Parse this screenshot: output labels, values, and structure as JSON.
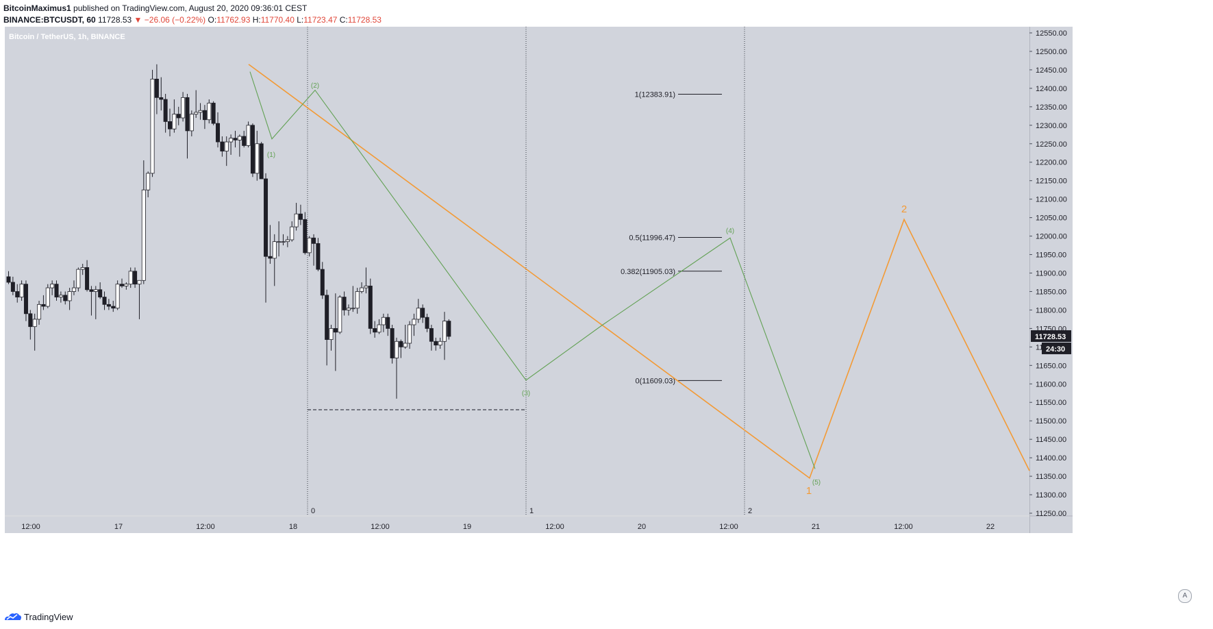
{
  "header": {
    "author": "BitcoinMaximus1",
    "published_text": "published on TradingView.com, August 20, 2020 09:36:01 CEST",
    "symbol": "BINANCE:BTCUSDT, 60",
    "last_price": "11728.53",
    "change": "−26.06 (−0.22%)",
    "open_label": "O:",
    "open_value": "11762.93",
    "high_label": "H:",
    "high_value": "11770.40",
    "low_label": "L:",
    "low_value": "11723.47",
    "close_label": "C:",
    "close_value": "11728.53"
  },
  "chart_data": {
    "type": "candlestick",
    "title": "Bitcoin / TetherUS, 1h, BINANCE",
    "ylim": [
      11240,
      12590
    ],
    "y_ticks": [
      12550,
      12500,
      12450,
      12400,
      12350,
      12300,
      12250,
      12200,
      12150,
      12100,
      12050,
      12000,
      11950,
      11900,
      11850,
      11800,
      11750,
      11700,
      11650,
      11600,
      11550,
      11500,
      11450,
      11400,
      11350,
      11300,
      11250
    ],
    "x_ticks": [
      "12:00",
      "17",
      "12:00",
      "18",
      "12:00",
      "19",
      "12:00",
      "20",
      "12:00",
      "21",
      "12:00",
      "22"
    ],
    "price_label": "11728.53",
    "countdown_label": "24:30",
    "candles": [
      [
        11890,
        11905,
        11870,
        11875
      ],
      [
        11875,
        11890,
        11840,
        11850
      ],
      [
        11850,
        11870,
        11820,
        11835
      ],
      [
        11835,
        11880,
        11825,
        11870
      ],
      [
        11870,
        11880,
        11770,
        11790
      ],
      [
        11790,
        11800,
        11720,
        11755
      ],
      [
        11755,
        11790,
        11690,
        11775
      ],
      [
        11775,
        11825,
        11760,
        11815
      ],
      [
        11815,
        11840,
        11800,
        11810
      ],
      [
        11810,
        11870,
        11805,
        11860
      ],
      [
        11860,
        11880,
        11840,
        11870
      ],
      [
        11870,
        11880,
        11825,
        11835
      ],
      [
        11835,
        11850,
        11820,
        11840
      ],
      [
        11840,
        11850,
        11815,
        11825
      ],
      [
        11825,
        11860,
        11800,
        11850
      ],
      [
        11850,
        11880,
        11840,
        11860
      ],
      [
        11860,
        11915,
        11850,
        11910
      ],
      [
        11910,
        11925,
        11895,
        11915
      ],
      [
        11915,
        11935,
        11850,
        11855
      ],
      [
        11855,
        11865,
        11785,
        11850
      ],
      [
        11850,
        11865,
        11775,
        11855
      ],
      [
        11855,
        11875,
        11830,
        11835
      ],
      [
        11835,
        11850,
        11800,
        11815
      ],
      [
        11815,
        11830,
        11800,
        11810
      ],
      [
        11810,
        11825,
        11795,
        11805
      ],
      [
        11805,
        11880,
        11800,
        11870
      ],
      [
        11870,
        11885,
        11860,
        11865
      ],
      [
        11865,
        11875,
        11855,
        11870
      ],
      [
        11870,
        11915,
        11860,
        11905
      ],
      [
        11905,
        11915,
        11860,
        11870
      ],
      [
        11870,
        11880,
        11775,
        11880
      ],
      [
        11880,
        12205,
        11870,
        12125
      ],
      [
        12125,
        12175,
        12105,
        12170
      ],
      [
        12170,
        12450,
        12160,
        12425
      ],
      [
        12425,
        12465,
        12330,
        12375
      ],
      [
        12375,
        12430,
        12340,
        12370
      ],
      [
        12370,
        12385,
        12280,
        12310
      ],
      [
        12310,
        12345,
        12270,
        12290
      ],
      [
        12290,
        12370,
        12280,
        12330
      ],
      [
        12330,
        12350,
        12300,
        12320
      ],
      [
        12320,
        12390,
        12310,
        12375
      ],
      [
        12375,
        12385,
        12210,
        12285
      ],
      [
        12285,
        12340,
        12270,
        12330
      ],
      [
        12330,
        12395,
        12320,
        12335
      ],
      [
        12335,
        12360,
        12315,
        12340
      ],
      [
        12340,
        12355,
        12290,
        12315
      ],
      [
        12315,
        12370,
        12305,
        12360
      ],
      [
        12360,
        12365,
        12300,
        12305
      ],
      [
        12305,
        12335,
        12240,
        12255
      ],
      [
        12255,
        12270,
        12215,
        12230
      ],
      [
        12230,
        12270,
        12190,
        12255
      ],
      [
        12255,
        12275,
        12220,
        12265
      ],
      [
        12265,
        12285,
        12240,
        12260
      ],
      [
        12260,
        12275,
        12215,
        12270
      ],
      [
        12270,
        12285,
        12240,
        12245
      ],
      [
        12245,
        12310,
        12240,
        12300
      ],
      [
        12300,
        12305,
        12160,
        12170
      ],
      [
        12170,
        12285,
        12150,
        12250
      ],
      [
        12250,
        12255,
        12165,
        12155
      ],
      [
        12155,
        12170,
        11820,
        11945
      ],
      [
        11945,
        12030,
        11925,
        11940
      ],
      [
        11940,
        12005,
        11865,
        11985
      ],
      [
        11985,
        12040,
        11945,
        11985
      ],
      [
        11985,
        12005,
        11975,
        11985
      ],
      [
        11985,
        12000,
        11970,
        11990
      ],
      [
        11990,
        12040,
        11985,
        12025
      ],
      [
        12025,
        12090,
        12015,
        12060
      ],
      [
        12060,
        12085,
        12030,
        12045
      ],
      [
        12045,
        12065,
        11950,
        11955
      ],
      [
        11955,
        12000,
        11945,
        11995
      ],
      [
        11995,
        12005,
        11920,
        11980
      ],
      [
        11980,
        11995,
        11905,
        11910
      ],
      [
        11910,
        11930,
        11830,
        11840
      ],
      [
        11840,
        11855,
        11650,
        11720
      ],
      [
        11720,
        11760,
        11690,
        11750
      ],
      [
        11750,
        11845,
        11635,
        11740
      ],
      [
        11740,
        11840,
        11735,
        11835
      ],
      [
        11835,
        11850,
        11785,
        11800
      ],
      [
        11800,
        11815,
        11785,
        11805
      ],
      [
        11805,
        11865,
        11795,
        11805
      ],
      [
        11805,
        11860,
        11790,
        11850
      ],
      [
        11850,
        11875,
        11845,
        11860
      ],
      [
        11860,
        11915,
        11845,
        11865
      ],
      [
        11865,
        11885,
        11735,
        11750
      ],
      [
        11750,
        11770,
        11725,
        11740
      ],
      [
        11740,
        11775,
        11735,
        11760
      ],
      [
        11760,
        11790,
        11740,
        11780
      ],
      [
        11780,
        11790,
        11730,
        11750
      ],
      [
        11750,
        11760,
        11655,
        11670
      ],
      [
        11670,
        11725,
        11560,
        11715
      ],
      [
        11715,
        11720,
        11670,
        11700
      ],
      [
        11700,
        11760,
        11695,
        11710
      ],
      [
        11710,
        11770,
        11695,
        11760
      ],
      [
        11760,
        11790,
        11730,
        11775
      ],
      [
        11775,
        11830,
        11765,
        11805
      ],
      [
        11805,
        11815,
        11765,
        11780
      ],
      [
        11780,
        11790,
        11740,
        11750
      ],
      [
        11750,
        11760,
        11690,
        11715
      ],
      [
        11715,
        11725,
        11690,
        11705
      ],
      [
        11705,
        11725,
        11695,
        11715
      ],
      [
        11715,
        11795,
        11665,
        11770
      ],
      [
        11770,
        11775,
        11720,
        11728.53
      ]
    ],
    "annotations": {
      "vertical_lines": [
        {
          "label": "0"
        },
        {
          "label": "1"
        },
        {
          "label": "2"
        }
      ],
      "fib_levels": [
        {
          "label": "1(12383.91)",
          "value": 12383.91
        },
        {
          "label": "0.5(11996.47)",
          "value": 11996.47
        },
        {
          "label": "0.382(11905.03)",
          "value": 11905.03
        },
        {
          "label": "0(11609.03)",
          "value": 11609.03
        }
      ],
      "dashed_level": 11530,
      "green_wave_labels": [
        "(1)",
        "(2)",
        "(3)",
        "(4)",
        "(5)"
      ],
      "orange_wave_labels": [
        "1",
        "2"
      ],
      "orange_color": "#f39a35",
      "green_color": "#62a154",
      "bull_color": "#ffffff",
      "bear_color": "#1f1f27",
      "background_color": "#d1d4dc"
    }
  },
  "footer": {
    "brand": "TradingView",
    "auto_label": "A"
  }
}
